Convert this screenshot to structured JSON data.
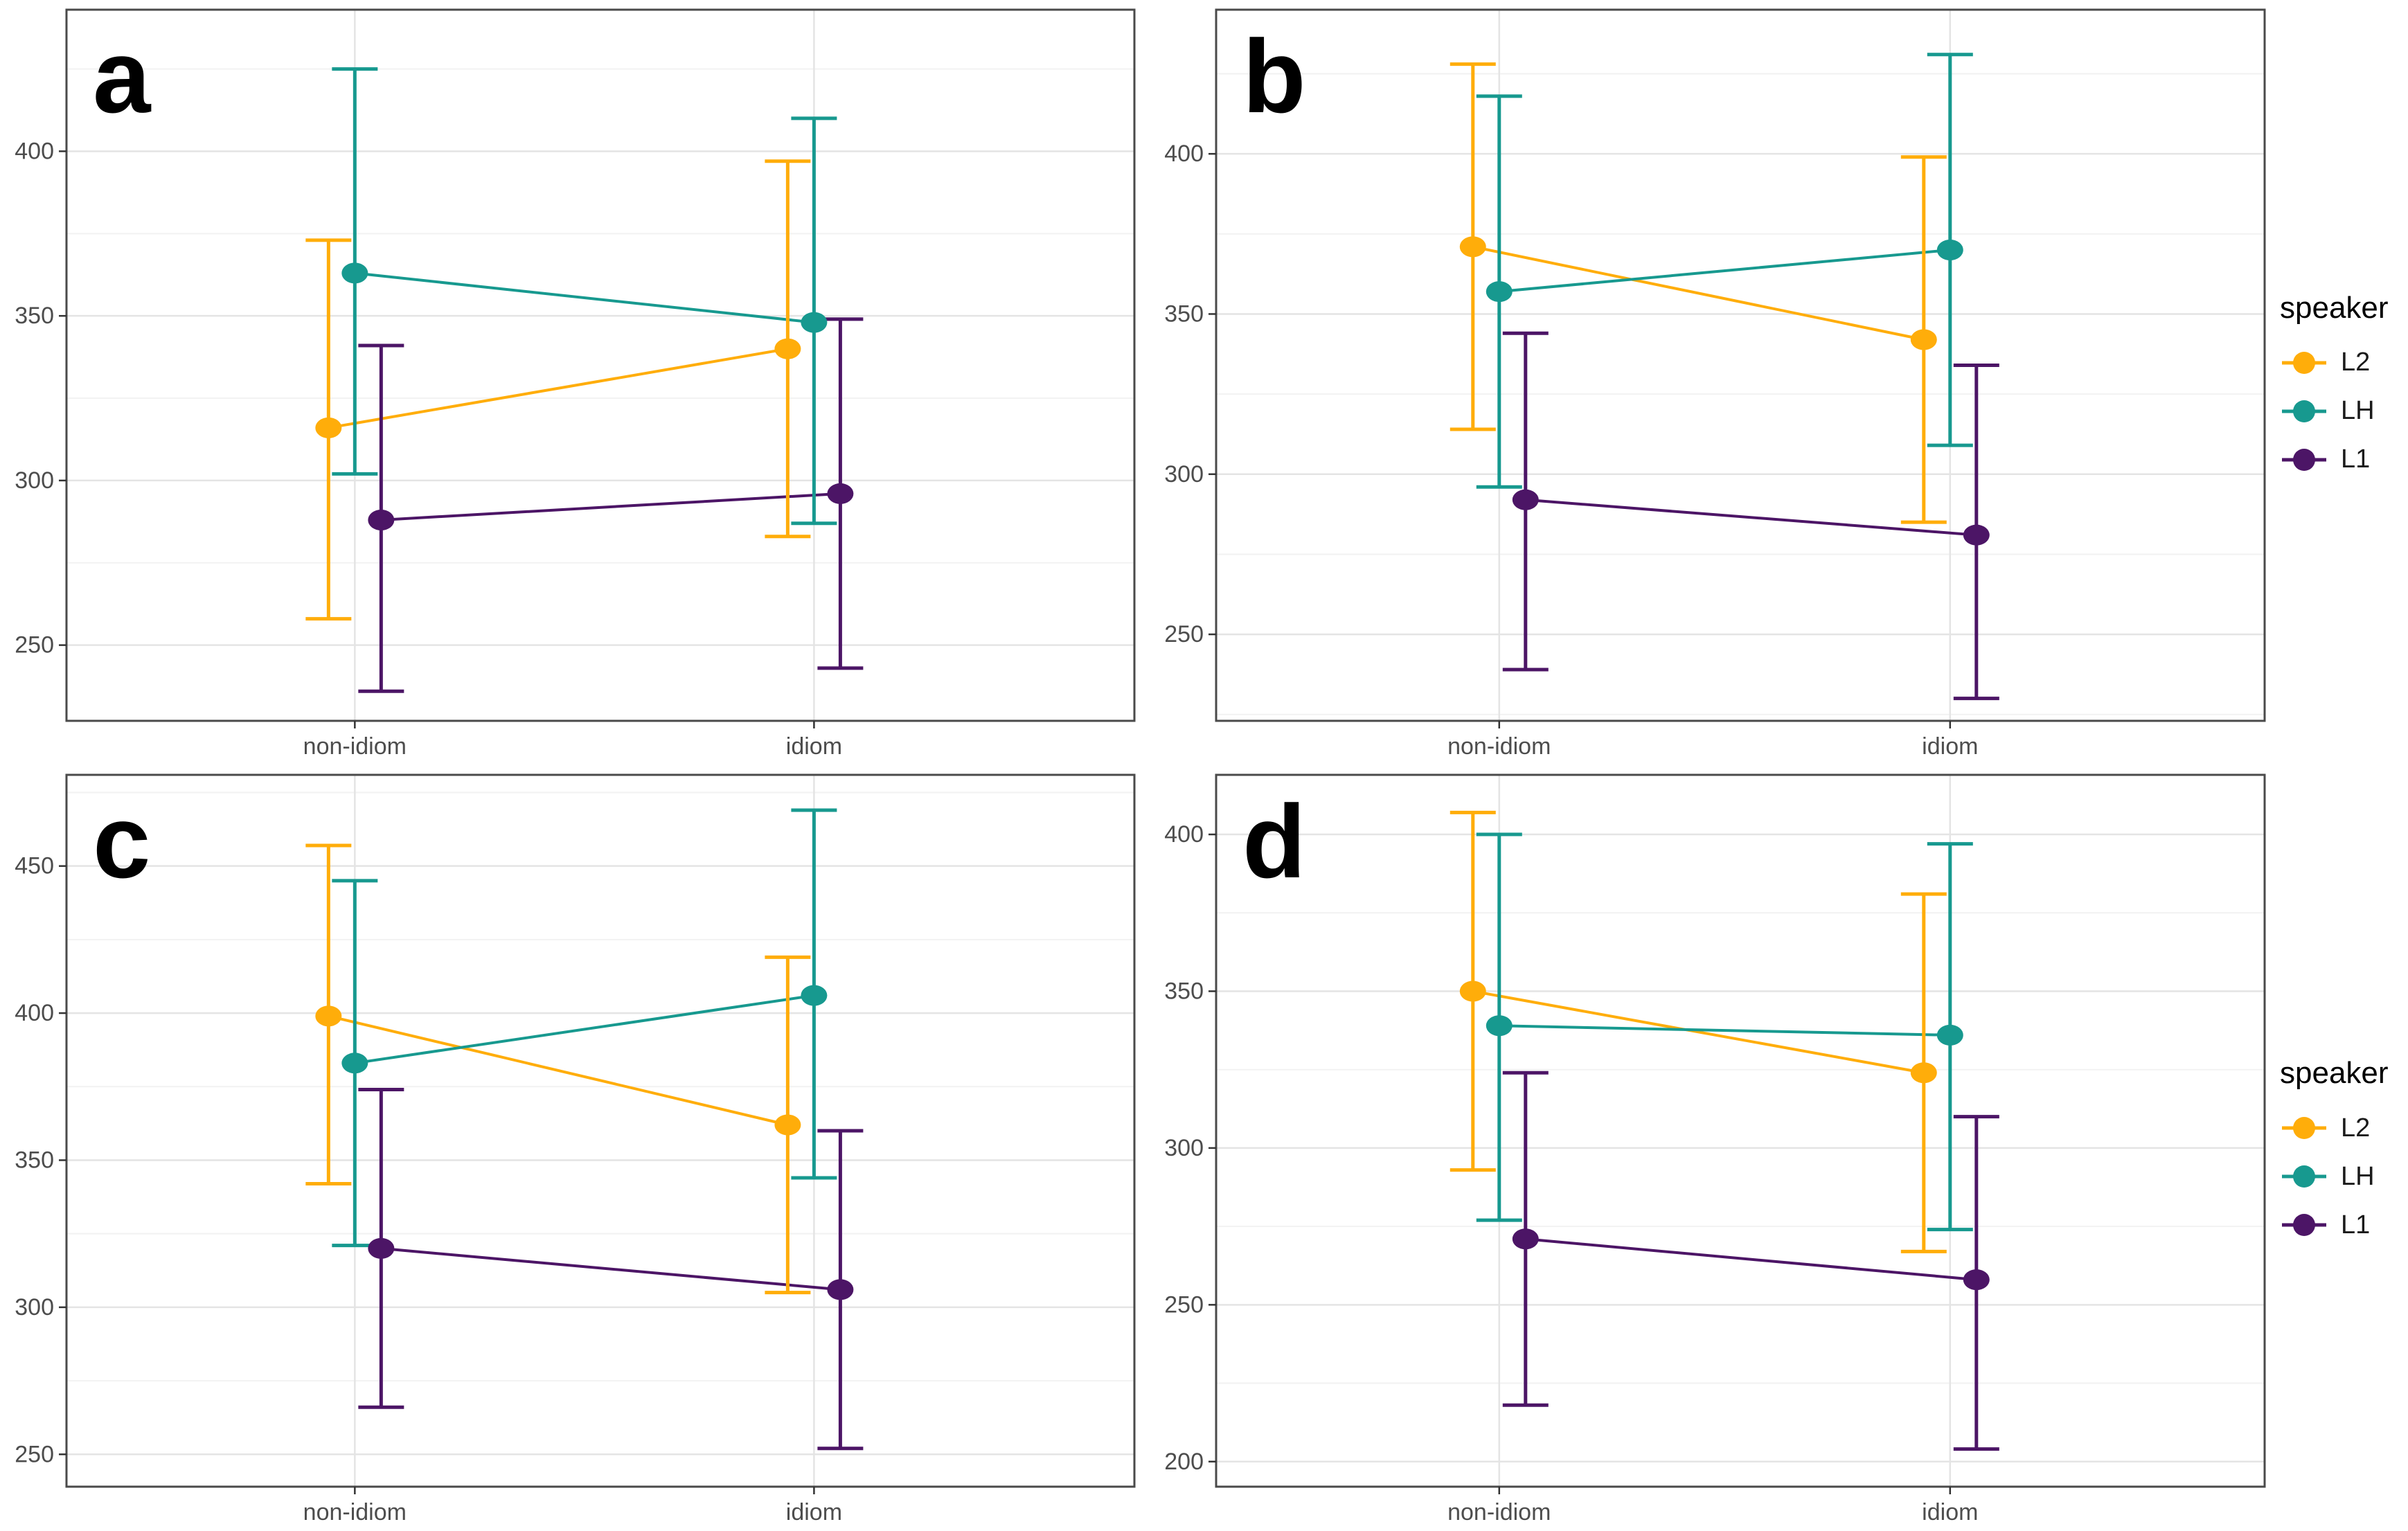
{
  "page": {
    "background": "#ffffff"
  },
  "chart_data": {
    "type": "line",
    "subtype": "dot-and-errorbar interaction plot, 2x2 facets",
    "categories": [
      "non-idiom",
      "idiom"
    ],
    "xlabel": "",
    "ylabel": "",
    "grid": true,
    "minor_grid": true,
    "legend": {
      "title": "speaker",
      "position": "right",
      "entries": [
        {
          "label": "L2",
          "color": "#FFAD0A"
        },
        {
          "label": "LH",
          "color": "#17998F"
        },
        {
          "label": "L1",
          "color": "#4C1566"
        }
      ]
    },
    "facets": [
      {
        "label": "a",
        "yticks": [
          250,
          300,
          350,
          400
        ],
        "ydomain": [
          227,
          443
        ],
        "series": [
          {
            "name": "L2",
            "color": "#FFAD0A",
            "points": [
              {
                "category": "non-idiom",
                "y": 316,
                "lo": 258,
                "hi": 373
              },
              {
                "category": "idiom",
                "y": 340,
                "lo": 283,
                "hi": 397
              }
            ]
          },
          {
            "name": "LH",
            "color": "#17998F",
            "points": [
              {
                "category": "non-idiom",
                "y": 363,
                "lo": 302,
                "hi": 425
              },
              {
                "category": "idiom",
                "y": 348,
                "lo": 287,
                "hi": 410
              }
            ]
          },
          {
            "name": "L1",
            "color": "#4C1566",
            "points": [
              {
                "category": "non-idiom",
                "y": 288,
                "lo": 236,
                "hi": 341
              },
              {
                "category": "idiom",
                "y": 296,
                "lo": 243,
                "hi": 349
              }
            ]
          }
        ]
      },
      {
        "label": "b",
        "yticks": [
          250,
          300,
          350,
          400
        ],
        "ydomain": [
          223,
          445
        ],
        "series": [
          {
            "name": "L2",
            "color": "#FFAD0A",
            "points": [
              {
                "category": "non-idiom",
                "y": 371,
                "lo": 314,
                "hi": 428
              },
              {
                "category": "idiom",
                "y": 342,
                "lo": 285,
                "hi": 399
              }
            ]
          },
          {
            "name": "LH",
            "color": "#17998F",
            "points": [
              {
                "category": "non-idiom",
                "y": 357,
                "lo": 296,
                "hi": 418
              },
              {
                "category": "idiom",
                "y": 370,
                "lo": 309,
                "hi": 431
              }
            ]
          },
          {
            "name": "L1",
            "color": "#4C1566",
            "points": [
              {
                "category": "non-idiom",
                "y": 292,
                "lo": 239,
                "hi": 344
              },
              {
                "category": "idiom",
                "y": 281,
                "lo": 230,
                "hi": 334
              }
            ]
          }
        ]
      },
      {
        "label": "c",
        "yticks": [
          250,
          300,
          350,
          400,
          450
        ],
        "ydomain": [
          239,
          481
        ],
        "series": [
          {
            "name": "L2",
            "color": "#FFAD0A",
            "points": [
              {
                "category": "non-idiom",
                "y": 399,
                "lo": 342,
                "hi": 457
              },
              {
                "category": "idiom",
                "y": 362,
                "lo": 305,
                "hi": 419
              }
            ]
          },
          {
            "name": "LH",
            "color": "#17998F",
            "points": [
              {
                "category": "non-idiom",
                "y": 383,
                "lo": 321,
                "hi": 445
              },
              {
                "category": "idiom",
                "y": 406,
                "lo": 344,
                "hi": 469
              }
            ]
          },
          {
            "name": "L1",
            "color": "#4C1566",
            "points": [
              {
                "category": "non-idiom",
                "y": 320,
                "lo": 266,
                "hi": 374
              },
              {
                "category": "idiom",
                "y": 306,
                "lo": 252,
                "hi": 360
              }
            ]
          }
        ]
      },
      {
        "label": "d",
        "yticks": [
          200,
          250,
          300,
          350,
          400
        ],
        "ydomain": [
          192,
          419
        ],
        "series": [
          {
            "name": "L2",
            "color": "#FFAD0A",
            "points": [
              {
                "category": "non-idiom",
                "y": 350,
                "lo": 293,
                "hi": 407
              },
              {
                "category": "idiom",
                "y": 324,
                "lo": 267,
                "hi": 381
              }
            ]
          },
          {
            "name": "LH",
            "color": "#17998F",
            "points": [
              {
                "category": "non-idiom",
                "y": 339,
                "lo": 277,
                "hi": 400
              },
              {
                "category": "idiom",
                "y": 336,
                "lo": 274,
                "hi": 397
              }
            ]
          },
          {
            "name": "L1",
            "color": "#4C1566",
            "points": [
              {
                "category": "non-idiom",
                "y": 271,
                "lo": 218,
                "hi": 324
              },
              {
                "category": "idiom",
                "y": 258,
                "lo": 204,
                "hi": 310
              }
            ]
          }
        ]
      }
    ],
    "style": {
      "grid_major_color": "#E4E4E4",
      "grid_minor_color": "#F2F2F2",
      "panel_border_color": "#4A4A4A",
      "tick_text_color": "#4D4D4D",
      "facet_letter_color": "#000000"
    }
  }
}
